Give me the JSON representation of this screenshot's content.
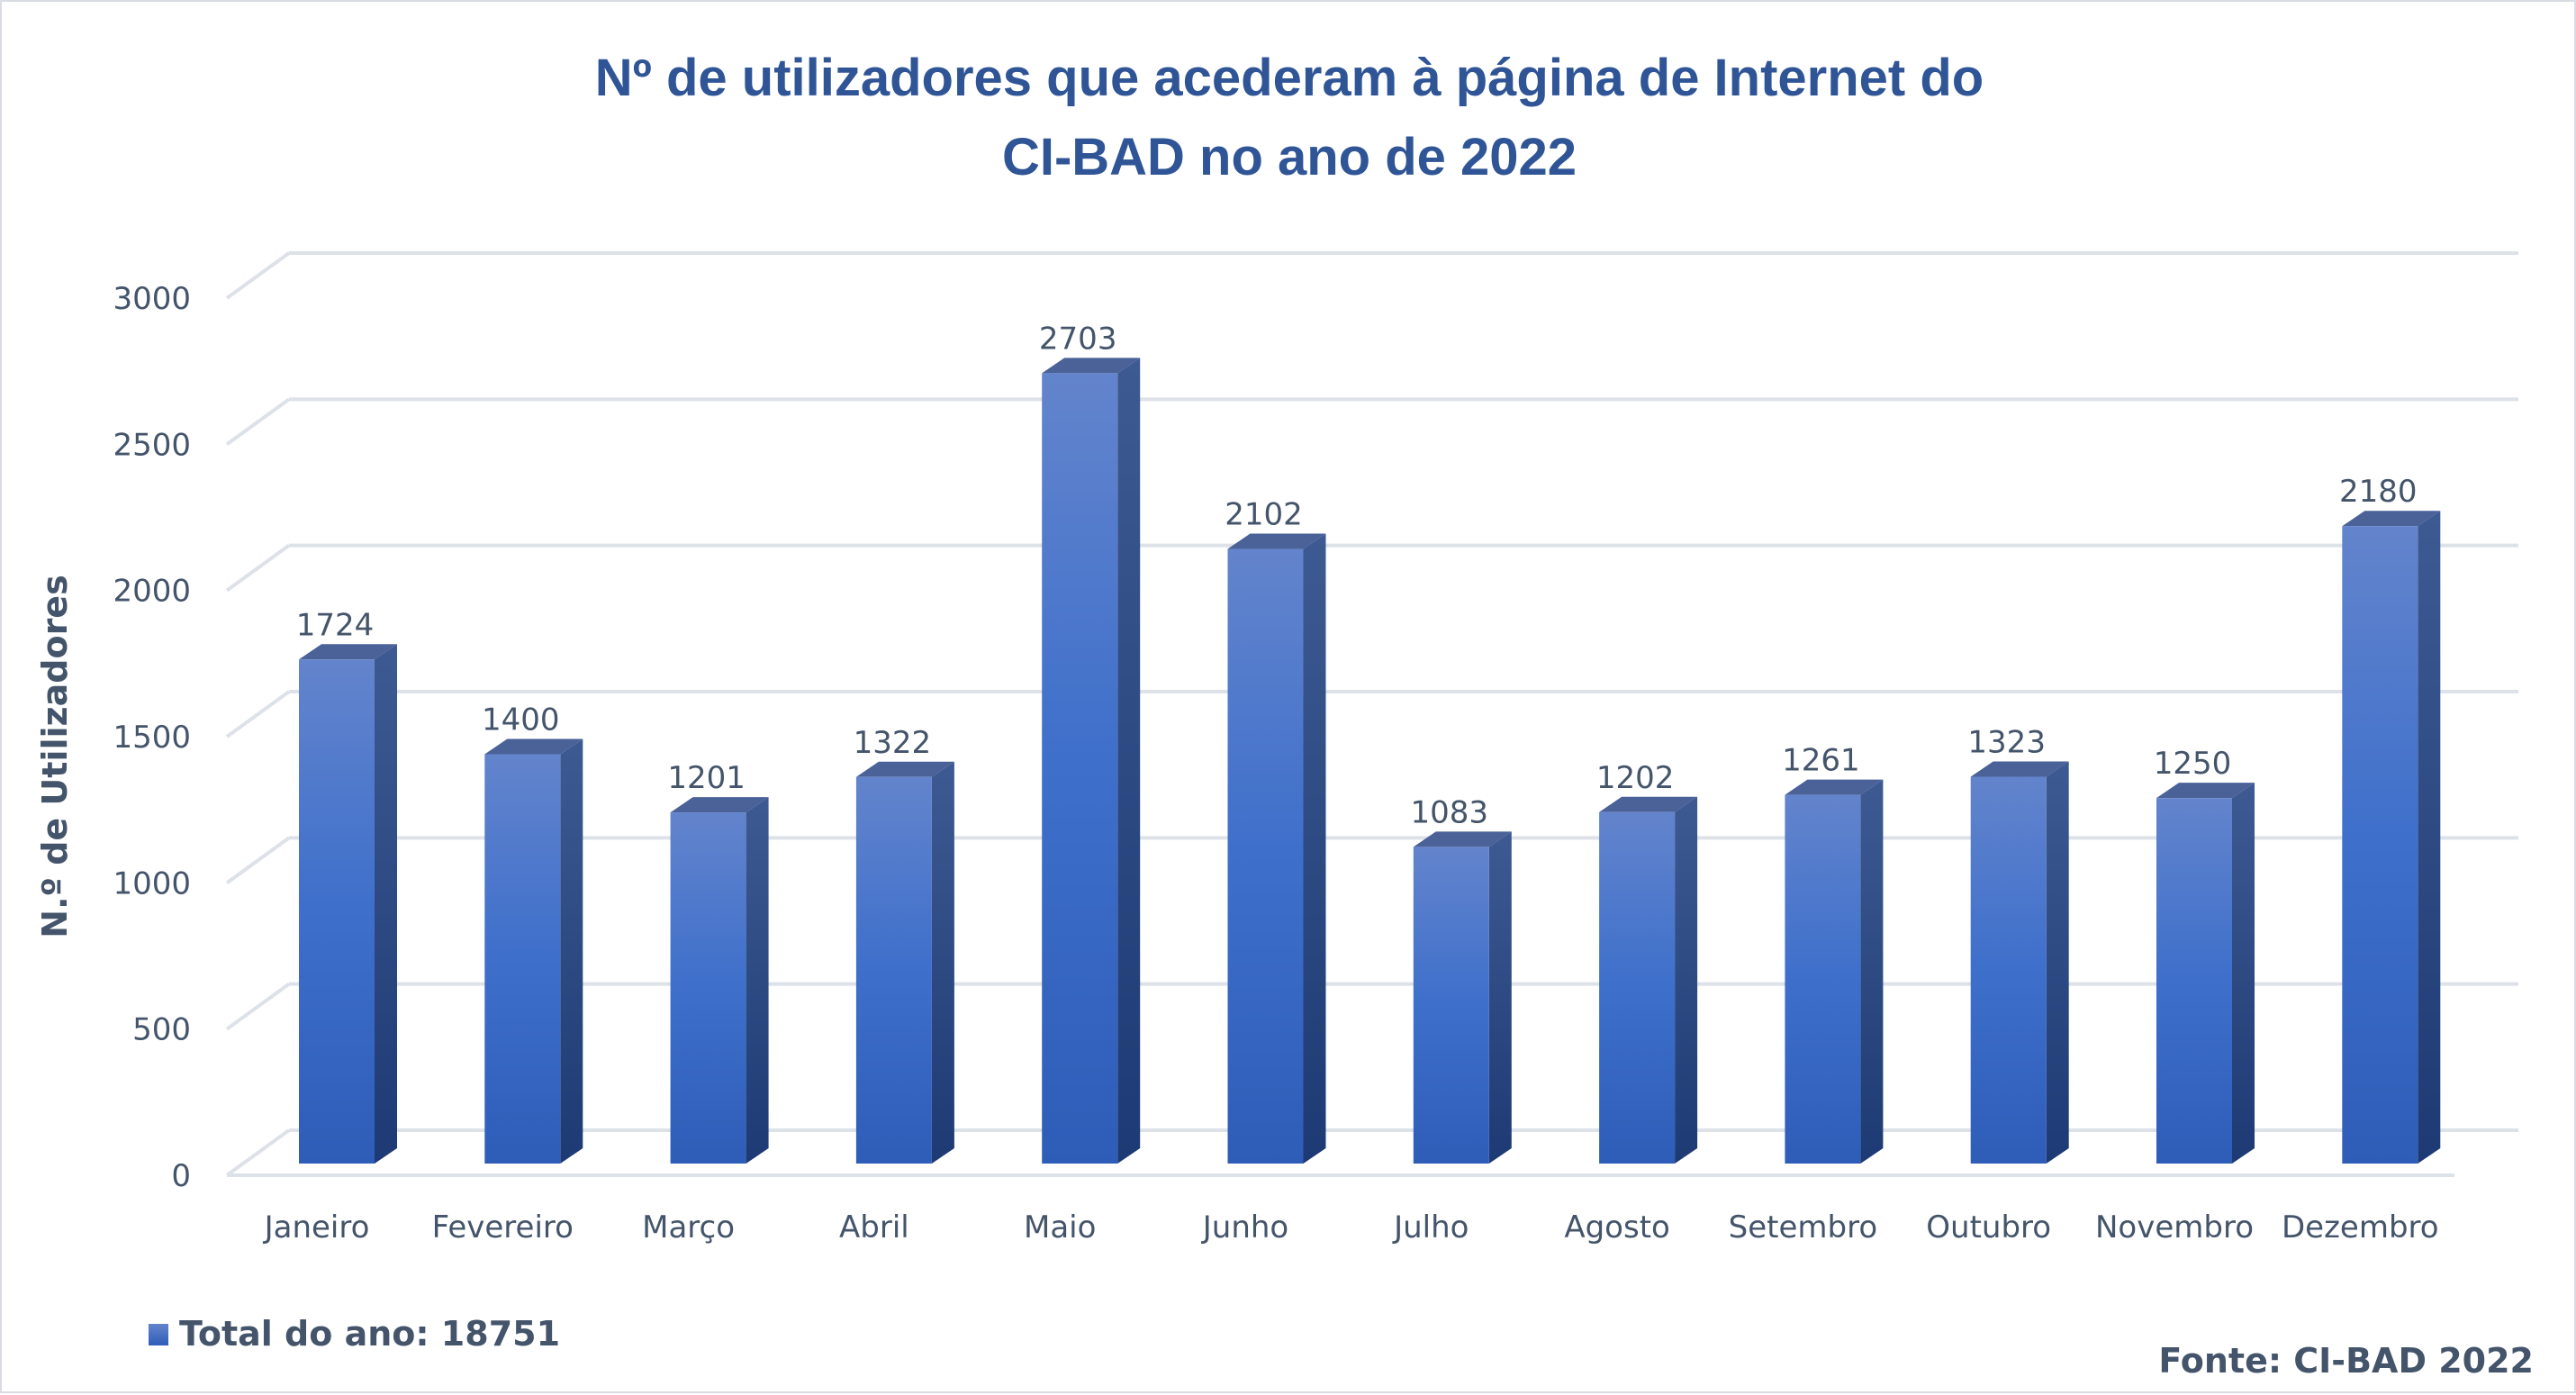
{
  "chart_data": {
    "type": "bar",
    "title_lines": [
      "Nº de utilizadores que acederam à página de Internet do",
      "CI-BAD no ano de  2022"
    ],
    "xlabel": "",
    "ylabel": "N.º de Utilizadores",
    "ylim": [
      0,
      3000
    ],
    "yticks": [
      0,
      500,
      1000,
      1500,
      2000,
      2500,
      3000
    ],
    "grid": true,
    "style": "3d-column",
    "categories": [
      "Janeiro",
      "Fevereiro",
      "Março",
      "Abril",
      "Maio",
      "Junho",
      "Julho",
      "Agosto",
      "Setembro",
      "Outubro",
      "Novembro",
      "Dezembro"
    ],
    "values": [
      1724,
      1400,
      1201,
      1322,
      2703,
      2102,
      1083,
      1202,
      1261,
      1323,
      1250,
      2180
    ],
    "legend": {
      "label": "Total do ano: 18751",
      "placement": "bottom-left"
    },
    "source": "Fonte: CI-BAD 2022",
    "colors": {
      "bar_front": "#3A6AC8",
      "bar_side": "#2A4680",
      "bar_top": "#4A6298",
      "title": "#2F5597",
      "text": "#44546A",
      "grid": "#DDE1E8"
    }
  }
}
